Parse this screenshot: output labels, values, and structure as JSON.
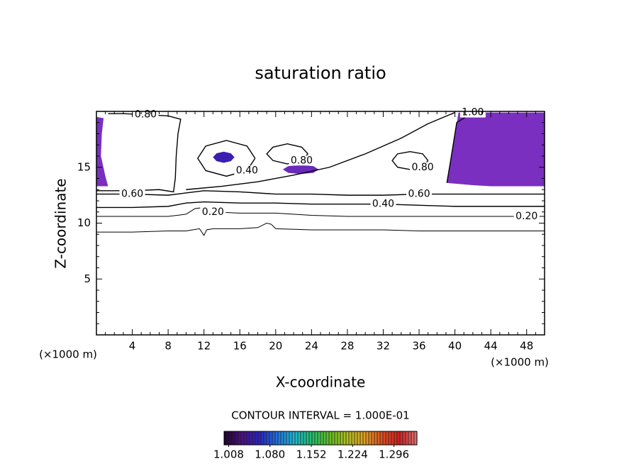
{
  "chart_data": {
    "type": "contour",
    "title": "saturation ratio",
    "x_label": "X-coordinate",
    "y_label": "Z-coordinate",
    "x_unit": "(×1000 m)",
    "y_unit": "(×1000 m)",
    "contour_interval_label": "CONTOUR INTERVAL = 1.000E-01",
    "xlim": [
      0,
      50
    ],
    "ylim": [
      0,
      20
    ],
    "xticks": [
      4,
      8,
      12,
      16,
      20,
      24,
      28,
      32,
      36,
      40,
      44,
      48
    ],
    "yticks": [
      5,
      10,
      15
    ],
    "xminorticks": [
      1,
      2,
      3,
      5,
      6,
      7,
      9,
      10,
      11,
      13,
      14,
      15,
      17,
      18,
      19,
      21,
      22,
      23,
      25,
      26,
      27,
      29,
      30,
      31,
      33,
      34,
      35,
      37,
      38,
      39,
      41,
      42,
      43,
      45,
      46,
      47,
      49
    ],
    "yminorticks": [
      1,
      2,
      3,
      4,
      6,
      7,
      8,
      9,
      11,
      12,
      13,
      14,
      16,
      17,
      18,
      19
    ],
    "line_color": "#000000",
    "regions": [
      {
        "color": "#7a2fc0",
        "x": [
          40.4,
          42,
          44,
          46,
          48,
          50,
          50,
          48,
          46,
          44,
          42,
          40.5,
          39.1,
          39.5,
          39.9
        ],
        "z": [
          19.9,
          19.9,
          19.9,
          19.9,
          19.9,
          19.9,
          13.3,
          13.3,
          13.3,
          13.3,
          13.4,
          13.5,
          13.6,
          15.5,
          17.5
        ]
      },
      {
        "color": "#7a2fc0",
        "x": [
          0,
          0.8,
          0.6,
          0.5,
          1.0,
          1.3,
          0
        ],
        "z": [
          19.5,
          19.4,
          18,
          16,
          14.2,
          13.3,
          13.3
        ]
      },
      {
        "color": "#3a1fb0",
        "x": [
          15.4,
          15,
          14.2,
          13.4,
          13,
          13.4,
          14.2,
          15,
          15.4
        ],
        "z": [
          15.9,
          16.25,
          16.4,
          16.25,
          15.9,
          15.55,
          15.4,
          15.55,
          15.9
        ]
      },
      {
        "color": "#6a2aba",
        "x": [
          24.8,
          24.2,
          22.8,
          21.4,
          20.8,
          21.4,
          22.8,
          24.2,
          24.8
        ],
        "z": [
          14.8,
          15.1,
          15.2,
          15.1,
          14.8,
          14.5,
          14.4,
          14.5,
          14.8
        ]
      }
    ],
    "contours": [
      {
        "level": 0.1,
        "x": [
          0,
          4,
          8,
          10,
          11.5,
          12,
          12.3,
          13,
          16,
          18,
          19,
          19.5,
          20,
          24,
          28,
          32,
          36,
          40,
          44,
          48,
          50
        ],
        "z": [
          9.2,
          9.2,
          9.3,
          9.3,
          9.5,
          8.9,
          9.4,
          9.5,
          9.5,
          9.6,
          10.0,
          9.9,
          9.5,
          9.4,
          9.4,
          9.4,
          9.3,
          9.3,
          9.3,
          9.3,
          9.3
        ]
      },
      {
        "level": 0.2,
        "labels": [
          "0.20",
          "0.20"
        ],
        "x": [
          0,
          4,
          8,
          10,
          11,
          12,
          13,
          16,
          20,
          24,
          28,
          32,
          36,
          40,
          44,
          48,
          50
        ],
        "z": [
          10.6,
          10.6,
          10.6,
          10.8,
          11.3,
          11.4,
          11.0,
          10.9,
          10.9,
          10.7,
          10.6,
          10.6,
          10.6,
          10.6,
          10.6,
          10.6,
          10.6
        ]
      },
      {
        "level": 0.4,
        "labels": [
          "0.40"
        ],
        "x": [
          0,
          4,
          8,
          10,
          12,
          16,
          20,
          24,
          28,
          32,
          36,
          40,
          44,
          48,
          50
        ],
        "z": [
          11.4,
          11.4,
          11.5,
          11.8,
          11.9,
          11.8,
          11.8,
          11.7,
          11.7,
          11.7,
          11.6,
          11.5,
          11.5,
          11.5,
          11.5
        ]
      },
      {
        "level": 0.6,
        "labels": [
          "0.60",
          "0.60"
        ],
        "x": [
          0,
          4,
          8,
          10,
          12,
          16,
          20,
          24,
          28,
          32,
          36,
          40,
          44,
          48,
          50
        ],
        "z": [
          12.6,
          12.6,
          12.5,
          12.7,
          12.9,
          12.8,
          12.6,
          12.6,
          12.5,
          12.5,
          12.6,
          12.6,
          12.6,
          12.6,
          12.6
        ]
      },
      {
        "level": 0.8,
        "labels": [
          "0.80"
        ],
        "x": [
          0,
          4,
          7,
          8.6,
          8.8,
          8.9,
          9.1,
          9.4,
          8,
          5.5,
          3,
          1.3
        ],
        "z": [
          12.9,
          12.9,
          13.0,
          12.8,
          14,
          16,
          18,
          19.3,
          19.6,
          19.7,
          19.8,
          19.8
        ]
      },
      {
        "level": 0.8,
        "x": [
          10,
          14,
          18,
          22,
          26,
          30,
          34,
          37,
          40
        ],
        "z": [
          13,
          13.3,
          13.7,
          14.3,
          15,
          16.2,
          17.6,
          18.9,
          19.9
        ]
      },
      {
        "level": 0.4,
        "labels": [
          "0.40"
        ],
        "x": [
          17.7,
          16.8,
          14.5,
          12.2,
          11.3,
          12.2,
          14.5,
          16.8,
          17.7
        ],
        "z": [
          15.8,
          16.9,
          17.4,
          16.9,
          15.8,
          14.7,
          14.2,
          14.7,
          15.8
        ]
      },
      {
        "level": 0.8,
        "labels": [
          "0.80"
        ],
        "x": [
          23.6,
          22.9,
          21.3,
          19.7,
          19,
          19.7,
          21.3,
          22.9,
          23.6
        ],
        "z": [
          16.2,
          16.8,
          17.1,
          16.8,
          16.2,
          15.6,
          15.3,
          15.6,
          16.2
        ]
      },
      {
        "level": 1.0,
        "labels": [
          "1.00"
        ],
        "x": [
          39.1,
          39.5,
          39.9,
          40.2,
          42
        ],
        "z": [
          13.6,
          15.5,
          17.5,
          19.0,
          19.9
        ]
      },
      {
        "level": 0.8,
        "labels": [
          "0.80"
        ],
        "x": [
          37,
          36.4,
          35,
          33.6,
          33,
          33.6,
          35,
          36.4,
          37
        ],
        "z": [
          15.6,
          16.2,
          16.4,
          16.2,
          15.6,
          15,
          14.8,
          15,
          15.6
        ]
      }
    ],
    "colorbar": {
      "colors": [
        "#1a0028",
        "#4a1080",
        "#2a20c0",
        "#2070e0",
        "#20b8d0",
        "#20c070",
        "#60c020",
        "#b0c020",
        "#e0a020",
        "#e05020",
        "#d02020",
        "#e07070"
      ],
      "clim": [
        1.0,
        1.336
      ],
      "ticks": [
        1.008,
        {
          "value": 1.08,
          "label": "1.080"
        },
        1.152,
        1.224,
        1.296
      ]
    }
  }
}
